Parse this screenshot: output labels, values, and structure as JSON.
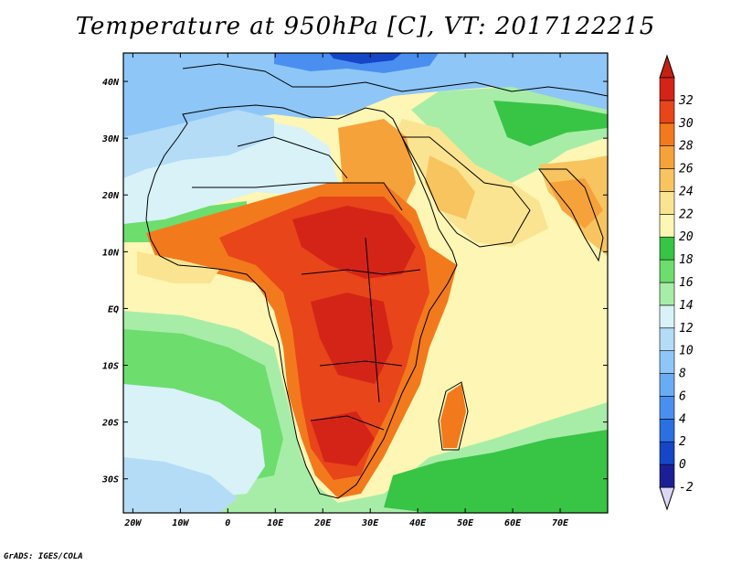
{
  "title": "Temperature at 950hPa [C], VT: 2017122215",
  "credit": "GrADS: IGES/COLA",
  "map": {
    "projection": "lat-lon",
    "lon_range": [
      -22,
      80
    ],
    "lat_range": [
      -36,
      45
    ],
    "lon_ticks": [
      {
        "value": -20,
        "label": "20W"
      },
      {
        "value": -10,
        "label": "10W"
      },
      {
        "value": 0,
        "label": "0"
      },
      {
        "value": 10,
        "label": "10E"
      },
      {
        "value": 20,
        "label": "20E"
      },
      {
        "value": 30,
        "label": "30E"
      },
      {
        "value": 40,
        "label": "40E"
      },
      {
        "value": 50,
        "label": "50E"
      },
      {
        "value": 60,
        "label": "60E"
      },
      {
        "value": 70,
        "label": "70E"
      }
    ],
    "lat_ticks": [
      {
        "value": 40,
        "label": "40N"
      },
      {
        "value": 30,
        "label": "30N"
      },
      {
        "value": 20,
        "label": "20N"
      },
      {
        "value": 10,
        "label": "10N"
      },
      {
        "value": 0,
        "label": "EQ"
      },
      {
        "value": -10,
        "label": "10S"
      },
      {
        "value": -20,
        "label": "20S"
      },
      {
        "value": -30,
        "label": "30S"
      }
    ],
    "field": "temperature_950hPa",
    "units": "C"
  },
  "colorbar": {
    "levels": [
      "-2",
      "0",
      "2",
      "4",
      "6",
      "8",
      "10",
      "12",
      "14",
      "16",
      "18",
      "20",
      "22",
      "24",
      "26",
      "28",
      "30",
      "32"
    ],
    "colors": [
      "#1b1f96",
      "#1546c8",
      "#2b6fe0",
      "#4a8ff0",
      "#6aacf4",
      "#8ec6f7",
      "#b4dcf7",
      "#d8f2f8",
      "#a7eda8",
      "#6ddd6e",
      "#38c445",
      "#fdf6b4",
      "#fbe491",
      "#f8c45f",
      "#f6a23a",
      "#f27a1d",
      "#e8451a",
      "#d42418"
    ],
    "under_color": "#dcd6f7",
    "over_color": "#c42014"
  }
}
